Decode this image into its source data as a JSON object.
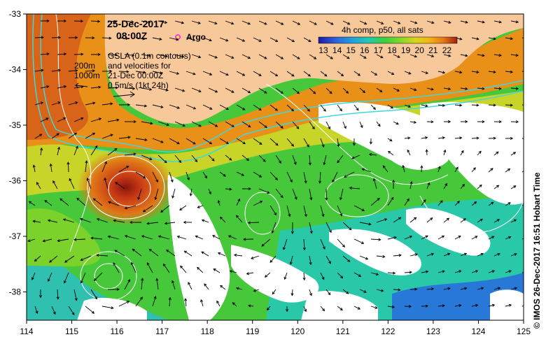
{
  "header": {
    "date": "25-Dec-2017",
    "time": "08:00Z",
    "argo_label": "Argo"
  },
  "legend": {
    "title": "4h comp, p50, all sats",
    "ticks": [
      "13",
      "14",
      "15",
      "16",
      "17",
      "18",
      "19",
      "20",
      "21",
      "22"
    ],
    "colors": [
      "#1a1aa0",
      "#2f5fd8",
      "#1e9fe0",
      "#22c8b4",
      "#3ccf3c",
      "#8ad82a",
      "#d8d420",
      "#f2b415",
      "#e6781a",
      "#c83a14",
      "#8a1410"
    ]
  },
  "annotations": {
    "isobaths": [
      "200m",
      "1000m"
    ],
    "gsla_lines": [
      "GSLA (0.1m contours)",
      "and velocities for",
      "21-Dec 00:00Z",
      "0.5m/s (1kt 24h)"
    ]
  },
  "axes": {
    "x_ticks": [
      "114",
      "115",
      "116",
      "117",
      "118",
      "119",
      "120",
      "121",
      "122",
      "123",
      "124",
      "125"
    ],
    "y_ticks": [
      "-33",
      "-34",
      "-35",
      "-36",
      "-37",
      "-38"
    ]
  },
  "credit": "© IMOS 26-Dec-2017 16:51 Hobart Time",
  "colors": {
    "land": "#f7c89a",
    "cloud": "#ffffff",
    "warm_core": "#b83214",
    "shelf_water": "#e07818"
  }
}
